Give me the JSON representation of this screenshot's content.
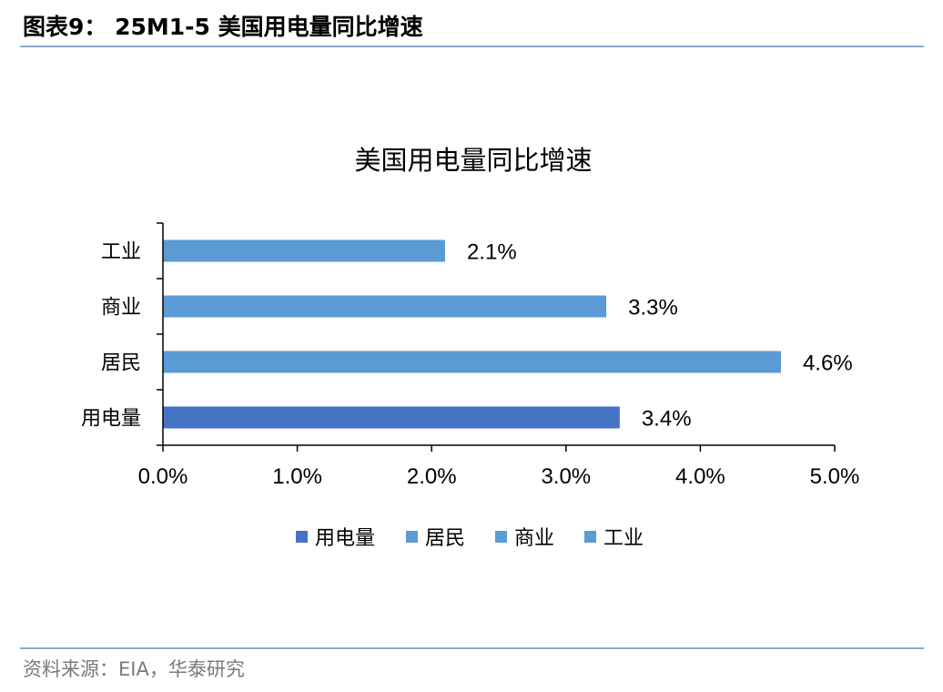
{
  "header": {
    "figure_title": "图表9： 25M1-5 美国用电量同比增速"
  },
  "footer": {
    "source": "资料来源：EIA，华泰研究"
  },
  "chart_data": {
    "type": "bar",
    "orientation": "horizontal",
    "title": "美国用电量同比增速",
    "categories": [
      "用电量",
      "居民",
      "商业",
      "工业"
    ],
    "values": [
      3.4,
      4.6,
      3.3,
      2.1
    ],
    "value_labels": [
      "3.4%",
      "4.6%",
      "3.3%",
      "2.1%"
    ],
    "unit": "%",
    "xlim": [
      0,
      5
    ],
    "x_ticks": [
      0,
      1,
      2,
      3,
      4,
      5
    ],
    "x_tick_labels": [
      "0.0%",
      "1.0%",
      "2.0%",
      "3.0%",
      "4.0%",
      "5.0%"
    ],
    "xlabel": "",
    "ylabel": "",
    "grid": false,
    "legend_position": "bottom",
    "legend": [
      "用电量",
      "居民",
      "商业",
      "工业"
    ],
    "colors": {
      "用电量": "#4472c4",
      "居民": "#5b9bd5",
      "商业": "#5b9bd5",
      "工业": "#5b9bd5"
    },
    "axis_color": "#000000"
  }
}
